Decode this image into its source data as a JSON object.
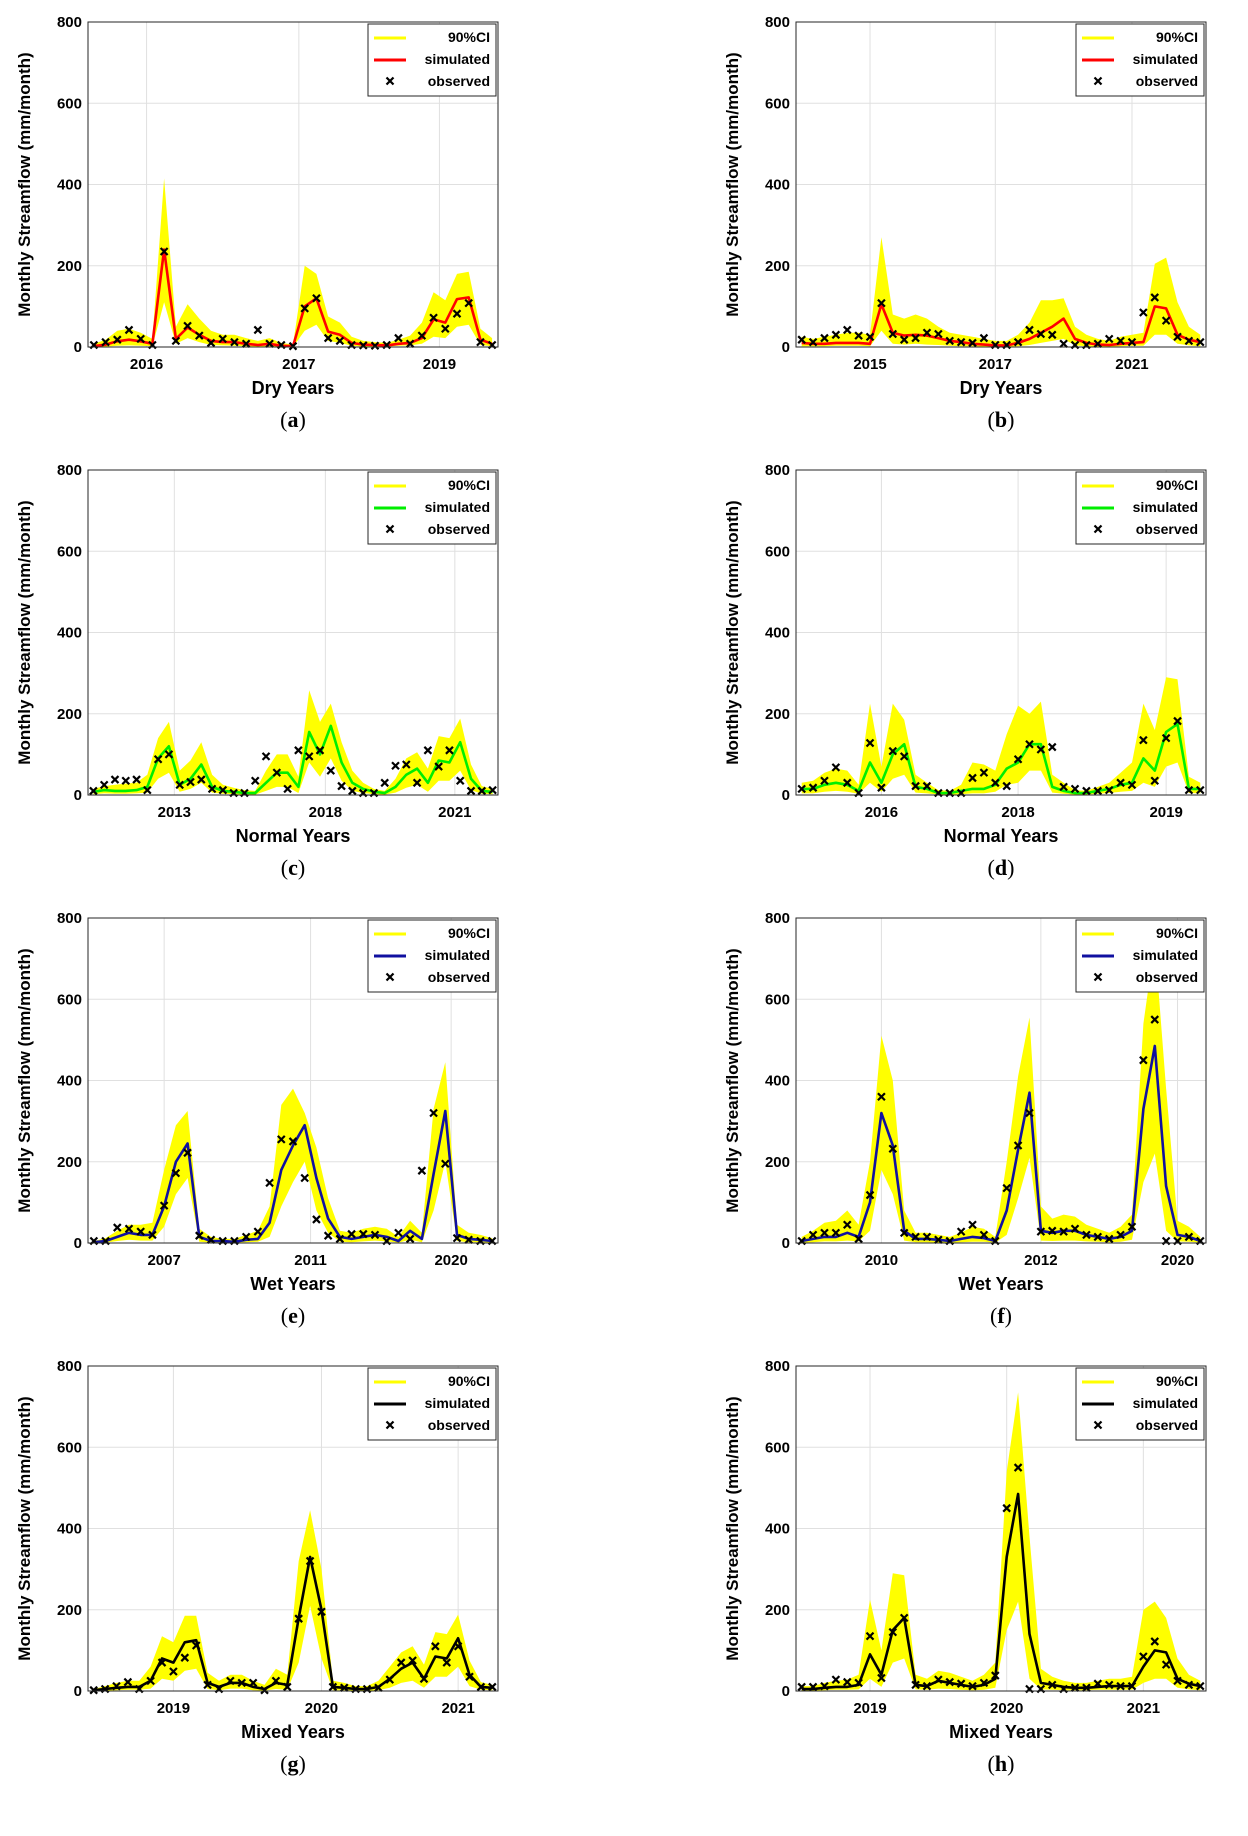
{
  "figure": {
    "legend_labels": [
      "90%CI",
      "simulated",
      "observed"
    ],
    "colors": {
      "ci": "#ffff00",
      "obs": "#000000",
      "grid": "#e0e0e0",
      "axis": "#262626"
    }
  },
  "chart_data": [
    {
      "id": "a",
      "type": "line",
      "caption_letter": "a",
      "xlabel": "Dry Years",
      "ylabel": "Monthly Streamflow (mm/month)",
      "ylim": [
        0,
        800
      ],
      "yticks": [
        0,
        200,
        400,
        600,
        800
      ],
      "legend_position": "top-right",
      "sim_color": "#ff0000",
      "xtick_labels": [
        "2016",
        "2017",
        "2019"
      ],
      "xtick_index": [
        4.5,
        17.5,
        29.5
      ],
      "simulated": [
        2,
        6,
        14,
        18,
        14,
        8,
        240,
        20,
        48,
        30,
        15,
        12,
        12,
        8,
        5,
        8,
        3,
        2,
        100,
        120,
        38,
        30,
        10,
        6,
        5,
        4,
        8,
        10,
        22,
        68,
        60,
        118,
        122,
        18,
        8
      ],
      "ci_upper": [
        8,
        18,
        40,
        45,
        35,
        20,
        415,
        50,
        105,
        70,
        40,
        30,
        30,
        22,
        15,
        22,
        10,
        6,
        200,
        180,
        75,
        60,
        25,
        15,
        12,
        10,
        18,
        28,
        60,
        135,
        115,
        180,
        185,
        45,
        22
      ],
      "ci_lower": [
        0,
        1,
        3,
        4,
        3,
        2,
        110,
        8,
        22,
        12,
        5,
        4,
        3,
        2,
        1,
        2,
        0,
        0,
        40,
        55,
        15,
        10,
        3,
        1,
        1,
        1,
        3,
        4,
        8,
        25,
        22,
        50,
        55,
        5,
        2
      ],
      "observed": [
        5,
        12,
        18,
        42,
        20,
        5,
        235,
        15,
        52,
        28,
        10,
        20,
        12,
        8,
        42,
        8,
        5,
        2,
        95,
        120,
        22,
        15,
        5,
        4,
        3,
        5,
        22,
        8,
        28,
        72,
        45,
        82,
        108,
        12,
        5
      ]
    },
    {
      "id": "b",
      "type": "line",
      "caption_letter": "b",
      "xlabel": "Dry Years",
      "ylabel": "Monthly Streamflow (mm/month)",
      "ylim": [
        0,
        800
      ],
      "yticks": [
        0,
        200,
        400,
        600,
        800
      ],
      "legend_position": "top-right",
      "sim_color": "#ff0000",
      "xtick_labels": [
        "2015",
        "2017",
        "2021"
      ],
      "xtick_index": [
        6,
        17,
        29
      ],
      "simulated": [
        10,
        8,
        8,
        10,
        10,
        10,
        8,
        105,
        35,
        28,
        30,
        28,
        22,
        15,
        12,
        8,
        6,
        4,
        4,
        10,
        20,
        35,
        50,
        70,
        20,
        10,
        6,
        5,
        8,
        10,
        12,
        100,
        95,
        30,
        18,
        12
      ],
      "ci_upper": [
        25,
        20,
        25,
        30,
        35,
        35,
        30,
        270,
        80,
        70,
        80,
        70,
        50,
        35,
        30,
        25,
        20,
        15,
        15,
        30,
        60,
        115,
        115,
        120,
        50,
        30,
        20,
        15,
        25,
        30,
        35,
        205,
        220,
        110,
        50,
        30
      ],
      "ci_lower": [
        2,
        2,
        2,
        3,
        3,
        3,
        2,
        40,
        8,
        6,
        8,
        6,
        5,
        3,
        2,
        2,
        1,
        1,
        1,
        2,
        5,
        10,
        15,
        20,
        4,
        2,
        1,
        1,
        2,
        3,
        3,
        30,
        30,
        8,
        4,
        2
      ],
      "observed": [
        18,
        12,
        22,
        30,
        42,
        28,
        25,
        108,
        32,
        18,
        22,
        35,
        32,
        15,
        12,
        10,
        22,
        5,
        5,
        12,
        42,
        32,
        30,
        8,
        5,
        5,
        8,
        20,
        15,
        12,
        85,
        122,
        65,
        25,
        15,
        12
      ]
    },
    {
      "id": "c",
      "type": "line",
      "caption_letter": "c",
      "xlabel": "Normal Years",
      "ylabel": "Monthly Streamflow (mm/month)",
      "ylim": [
        0,
        800
      ],
      "yticks": [
        0,
        200,
        400,
        600,
        800
      ],
      "legend_position": "top-right",
      "sim_color": "#00ee00",
      "xtick_labels": [
        "2013",
        "2018",
        "2021"
      ],
      "xtick_index": [
        7.5,
        21.5,
        33.5
      ],
      "simulated": [
        8,
        12,
        10,
        10,
        12,
        20,
        90,
        120,
        25,
        40,
        75,
        20,
        10,
        8,
        5,
        5,
        30,
        55,
        55,
        20,
        155,
        100,
        170,
        80,
        30,
        15,
        8,
        5,
        20,
        50,
        65,
        30,
        85,
        80,
        130,
        40,
        10,
        8
      ],
      "ci_upper": [
        15,
        22,
        25,
        28,
        30,
        50,
        140,
        180,
        60,
        85,
        130,
        50,
        25,
        18,
        12,
        10,
        60,
        100,
        100,
        45,
        258,
        180,
        225,
        130,
        60,
        30,
        15,
        10,
        40,
        90,
        105,
        65,
        145,
        140,
        188,
        75,
        22,
        15
      ],
      "ci_lower": [
        2,
        4,
        3,
        3,
        4,
        6,
        40,
        55,
        8,
        15,
        30,
        6,
        3,
        2,
        1,
        1,
        10,
        20,
        20,
        5,
        80,
        45,
        90,
        35,
        10,
        5,
        2,
        1,
        6,
        18,
        25,
        8,
        35,
        35,
        60,
        12,
        3,
        2
      ],
      "observed": [
        10,
        25,
        38,
        35,
        38,
        12,
        88,
        100,
        25,
        32,
        38,
        15,
        12,
        5,
        5,
        35,
        95,
        55,
        15,
        110,
        95,
        110,
        60,
        22,
        10,
        5,
        5,
        30,
        72,
        75,
        30,
        110,
        70,
        110,
        35,
        10,
        10,
        12
      ]
    },
    {
      "id": "d",
      "type": "line",
      "caption_letter": "d",
      "xlabel": "Normal Years",
      "ylabel": "Monthly Streamflow (mm/month)",
      "ylim": [
        0,
        800
      ],
      "yticks": [
        0,
        200,
        400,
        600,
        800
      ],
      "legend_position": "top-right",
      "sim_color": "#00ee00",
      "xtick_labels": [
        "2016",
        "2018",
        "2019"
      ],
      "xtick_index": [
        7,
        19,
        32
      ],
      "simulated": [
        15,
        15,
        25,
        30,
        25,
        10,
        80,
        30,
        100,
        125,
        20,
        15,
        5,
        5,
        10,
        15,
        15,
        25,
        65,
        80,
        125,
        125,
        20,
        10,
        5,
        5,
        10,
        15,
        25,
        30,
        90,
        60,
        155,
        175,
        15,
        15
      ],
      "ci_upper": [
        30,
        35,
        55,
        65,
        60,
        25,
        225,
        70,
        225,
        185,
        50,
        30,
        12,
        10,
        25,
        80,
        75,
        60,
        150,
        220,
        200,
        230,
        50,
        30,
        12,
        10,
        20,
        30,
        55,
        80,
        225,
        160,
        290,
        285,
        45,
        30
      ],
      "ci_lower": [
        4,
        4,
        8,
        10,
        8,
        3,
        30,
        8,
        40,
        50,
        6,
        4,
        1,
        1,
        2,
        4,
        4,
        8,
        25,
        30,
        60,
        60,
        6,
        3,
        1,
        1,
        3,
        5,
        8,
        10,
        30,
        20,
        70,
        80,
        5,
        4
      ],
      "observed": [
        15,
        18,
        35,
        68,
        30,
        5,
        128,
        18,
        108,
        95,
        22,
        22,
        5,
        5,
        5,
        42,
        55,
        30,
        22,
        88,
        125,
        112,
        118,
        20,
        15,
        10,
        10,
        12,
        30,
        25,
        135,
        35,
        140,
        182,
        12,
        12
      ]
    },
    {
      "id": "e",
      "type": "line",
      "caption_letter": "e",
      "xlabel": "Wet Years",
      "ylabel": "Monthly Streamflow (mm/month)",
      "ylim": [
        0,
        800
      ],
      "yticks": [
        0,
        200,
        400,
        600,
        800
      ],
      "legend_position": "top-right",
      "sim_color": "#1010a0",
      "xtick_labels": [
        "2007",
        "2011",
        "2020"
      ],
      "xtick_index": [
        6,
        18.5,
        30.5
      ],
      "simulated": [
        2,
        5,
        15,
        25,
        20,
        20,
        90,
        200,
        245,
        15,
        5,
        5,
        3,
        8,
        10,
        50,
        180,
        240,
        290,
        160,
        60,
        15,
        10,
        15,
        20,
        15,
        5,
        30,
        10,
        170,
        325,
        20,
        10,
        8,
        5
      ],
      "ci_upper": [
        5,
        12,
        30,
        45,
        45,
        50,
        180,
        290,
        325,
        35,
        15,
        10,
        10,
        20,
        30,
        90,
        340,
        380,
        320,
        235,
        110,
        30,
        25,
        35,
        40,
        35,
        15,
        55,
        25,
        330,
        445,
        45,
        25,
        20,
        12
      ],
      "ci_lower": [
        0,
        1,
        5,
        8,
        6,
        6,
        40,
        120,
        160,
        3,
        1,
        1,
        1,
        2,
        3,
        15,
        90,
        150,
        200,
        80,
        25,
        3,
        2,
        4,
        6,
        4,
        1,
        8,
        2,
        80,
        200,
        5,
        2,
        2,
        1
      ],
      "observed": [
        5,
        5,
        38,
        35,
        28,
        20,
        92,
        172,
        222,
        18,
        8,
        5,
        5,
        15,
        28,
        148,
        255,
        250,
        160,
        58,
        18,
        10,
        22,
        22,
        20,
        5,
        25,
        10,
        178,
        320,
        195,
        12,
        8,
        5,
        5
      ]
    },
    {
      "id": "f",
      "type": "line",
      "caption_letter": "f",
      "xlabel": "Wet Years",
      "ylabel": "Monthly Streamflow (mm/month)",
      "ylim": [
        0,
        800
      ],
      "yticks": [
        0,
        200,
        400,
        600,
        800
      ],
      "legend_position": "top-right",
      "sim_color": "#1010a0",
      "xtick_labels": [
        "2010",
        "2012",
        "2020"
      ],
      "xtick_index": [
        7,
        21,
        33
      ],
      "simulated": [
        5,
        10,
        15,
        15,
        25,
        15,
        100,
        320,
        240,
        30,
        10,
        10,
        8,
        5,
        10,
        15,
        12,
        5,
        80,
        230,
        370,
        30,
        25,
        30,
        30,
        20,
        15,
        10,
        15,
        30,
        330,
        485,
        140,
        20,
        15,
        5
      ],
      "ci_upper": [
        15,
        30,
        50,
        55,
        80,
        45,
        200,
        510,
        400,
        80,
        25,
        25,
        20,
        15,
        25,
        40,
        35,
        15,
        200,
        410,
        555,
        90,
        60,
        70,
        65,
        45,
        35,
        25,
        40,
        70,
        540,
        740,
        380,
        55,
        40,
        15
      ],
      "ci_lower": [
        1,
        2,
        4,
        4,
        6,
        4,
        30,
        180,
        120,
        6,
        2,
        2,
        1,
        1,
        2,
        3,
        3,
        1,
        20,
        110,
        210,
        6,
        5,
        6,
        6,
        4,
        3,
        2,
        3,
        8,
        150,
        220,
        30,
        4,
        3,
        1
      ],
      "observed": [
        5,
        20,
        25,
        25,
        45,
        10,
        118,
        360,
        232,
        25,
        15,
        15,
        8,
        5,
        28,
        45,
        20,
        5,
        135,
        240,
        320,
        28,
        30,
        28,
        35,
        20,
        15,
        10,
        20,
        40,
        450,
        550,
        5,
        5,
        15,
        5
      ]
    },
    {
      "id": "g",
      "type": "line",
      "caption_letter": "g",
      "xlabel": "Mixed Years",
      "ylabel": "Monthly Streamflow (mm/month)",
      "ylim": [
        0,
        800
      ],
      "yticks": [
        0,
        200,
        400,
        600,
        800
      ],
      "legend_position": "top-right",
      "sim_color": "#000000",
      "xtick_labels": [
        "2019",
        "2020",
        "2021"
      ],
      "xtick_index": [
        7,
        20,
        32
      ],
      "simulated": [
        2,
        5,
        8,
        10,
        10,
        25,
        80,
        70,
        120,
        125,
        20,
        10,
        20,
        20,
        10,
        5,
        20,
        15,
        180,
        330,
        200,
        10,
        8,
        5,
        5,
        10,
        30,
        55,
        70,
        30,
        85,
        80,
        130,
        40,
        10,
        8
      ],
      "ci_upper": [
        5,
        12,
        20,
        25,
        25,
        60,
        135,
        120,
        185,
        185,
        45,
        25,
        40,
        40,
        25,
        15,
        55,
        40,
        320,
        445,
        300,
        25,
        20,
        12,
        12,
        25,
        60,
        95,
        110,
        65,
        145,
        140,
        188,
        75,
        22,
        15
      ],
      "ci_lower": [
        0,
        1,
        2,
        3,
        3,
        6,
        30,
        25,
        50,
        55,
        5,
        2,
        6,
        6,
        2,
        1,
        5,
        3,
        70,
        210,
        80,
        2,
        2,
        1,
        1,
        2,
        8,
        20,
        25,
        8,
        35,
        35,
        60,
        12,
        3,
        2
      ],
      "observed": [
        2,
        5,
        12,
        22,
        5,
        25,
        70,
        48,
        82,
        112,
        15,
        5,
        25,
        20,
        20,
        2,
        25,
        10,
        178,
        320,
        195,
        10,
        8,
        5,
        5,
        8,
        28,
        70,
        75,
        30,
        110,
        70,
        110,
        35,
        10,
        10
      ]
    },
    {
      "id": "h",
      "type": "line",
      "caption_letter": "h",
      "xlabel": "Mixed Years",
      "ylabel": "Monthly Streamflow (mm/month)",
      "ylim": [
        0,
        800
      ],
      "yticks": [
        0,
        200,
        400,
        600,
        800
      ],
      "legend_position": "top-right",
      "sim_color": "#000000",
      "xtick_labels": [
        "2019",
        "2020",
        "2021"
      ],
      "xtick_index": [
        6,
        18,
        30
      ],
      "simulated": [
        5,
        5,
        8,
        10,
        10,
        15,
        90,
        40,
        150,
        180,
        15,
        12,
        25,
        20,
        15,
        10,
        15,
        30,
        330,
        485,
        140,
        20,
        15,
        10,
        8,
        8,
        10,
        12,
        12,
        12,
        60,
        100,
        95,
        30,
        18,
        12
      ],
      "ci_upper": [
        12,
        12,
        20,
        25,
        28,
        40,
        225,
        100,
        290,
        285,
        40,
        30,
        50,
        45,
        35,
        25,
        40,
        70,
        540,
        735,
        380,
        55,
        35,
        25,
        20,
        20,
        25,
        30,
        30,
        35,
        200,
        220,
        180,
        80,
        40,
        25
      ],
      "ci_lower": [
        1,
        1,
        2,
        3,
        3,
        4,
        30,
        10,
        70,
        80,
        4,
        3,
        6,
        5,
        3,
        2,
        3,
        8,
        150,
        220,
        30,
        4,
        3,
        2,
        2,
        2,
        3,
        3,
        3,
        3,
        20,
        30,
        30,
        8,
        4,
        2
      ],
      "observed": [
        10,
        10,
        12,
        28,
        22,
        20,
        135,
        32,
        145,
        180,
        15,
        12,
        28,
        22,
        18,
        12,
        20,
        38,
        450,
        550,
        5,
        5,
        15,
        5,
        8,
        8,
        18,
        15,
        12,
        12,
        85,
        122,
        65,
        25,
        15,
        12
      ]
    }
  ]
}
